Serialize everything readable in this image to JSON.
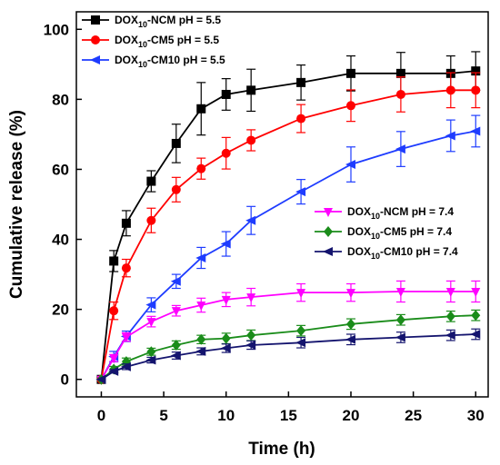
{
  "chart_data": {
    "type": "line",
    "xlabel": "Time (h)",
    "ylabel": "Cumulative release (%)",
    "xlim": [
      -2,
      31
    ],
    "ylim": [
      -5,
      105
    ],
    "xticks": [
      0,
      5,
      10,
      15,
      20,
      25,
      30
    ],
    "yticks": [
      0,
      20,
      40,
      60,
      80,
      100
    ],
    "x": [
      0,
      1,
      2,
      4,
      6,
      8,
      10,
      12,
      16,
      20,
      24,
      28,
      30
    ],
    "grid": false,
    "legend_placement": [
      "top-left",
      "right"
    ],
    "series": [
      {
        "name": "DOX10-NCM pH = 5.5",
        "legend": {
          "pre": "DOX",
          "sub": "10",
          "post": "-NCM pH = 5.5"
        },
        "color": "#000000",
        "marker": "square",
        "values": [
          0,
          33.8,
          44.6,
          56.6,
          67.4,
          77.3,
          81.4,
          82.6,
          84.8,
          87.4,
          87.4,
          87.4,
          88.1
        ],
        "errors": [
          0,
          3.0,
          3.6,
          3.0,
          5.5,
          7.5,
          4.5,
          6.0,
          5.0,
          5.0,
          6.0,
          5.0,
          5.5
        ]
      },
      {
        "name": "DOX10-CM5 pH = 5.5",
        "legend": {
          "pre": "DOX",
          "sub": "10",
          "post": "-CM5 pH = 5.5"
        },
        "color": "#ff0000",
        "marker": "circle",
        "values": [
          0,
          19.6,
          31.8,
          45.4,
          54.2,
          60.2,
          64.6,
          68.3,
          74.5,
          78.2,
          81.4,
          82.6,
          82.6
        ],
        "errors": [
          0,
          2.5,
          2.5,
          3.5,
          3.5,
          3.0,
          4.5,
          3.0,
          4.0,
          4.5,
          5.0,
          5.0,
          5.0
        ]
      },
      {
        "name": "DOX10-CM10 pH = 5.5",
        "legend": {
          "pre": "DOX",
          "sub": "10",
          "post": "-CM10 pH = 5.5"
        },
        "color": "#1e3cff",
        "marker": "left-triangle",
        "values": [
          0,
          6.5,
          12.3,
          21.3,
          28.0,
          34.7,
          38.7,
          45.4,
          53.6,
          61.4,
          65.8,
          69.6,
          70.9
        ],
        "errors": [
          0,
          1.5,
          1.5,
          2.0,
          2.0,
          3.0,
          3.5,
          4.0,
          3.5,
          5.0,
          5.0,
          4.5,
          4.5
        ]
      },
      {
        "name": "DOX10-NCM pH = 7.4",
        "legend": {
          "pre": "DOX",
          "sub": "10",
          "post": "-NCM pH = 7.4"
        },
        "color": "#ff00ff",
        "marker": "down-triangle",
        "values": [
          0,
          6.1,
          12.1,
          16.5,
          19.6,
          21.2,
          22.8,
          23.5,
          24.8,
          24.8,
          25.1,
          25.1,
          25.1
        ],
        "errors": [
          0,
          1.0,
          1.2,
          1.5,
          1.5,
          2.0,
          2.0,
          2.5,
          2.5,
          2.5,
          3.0,
          3.0,
          3.0
        ]
      },
      {
        "name": "DOX10-CM5 pH = 7.4",
        "legend": {
          "pre": "DOX",
          "sub": "10",
          "post": "-CM5 pH = 7.4"
        },
        "color": "#1a8c1a",
        "marker": "diamond",
        "values": [
          0,
          2.9,
          5.1,
          7.9,
          9.8,
          11.4,
          11.7,
          12.6,
          13.9,
          15.8,
          17.0,
          18.0,
          18.3
        ],
        "errors": [
          0,
          0.8,
          1.0,
          1.0,
          1.2,
          1.2,
          1.5,
          1.5,
          1.5,
          1.5,
          1.5,
          1.5,
          1.5
        ]
      },
      {
        "name": "DOX10-CM10 pH = 7.4",
        "legend": {
          "pre": "DOX",
          "sub": "10",
          "post": "-CM10 pH = 7.4"
        },
        "color": "#14146e",
        "marker": "left-triangle",
        "values": [
          0,
          2.3,
          3.6,
          5.5,
          6.8,
          8.0,
          8.9,
          9.8,
          10.5,
          11.4,
          12.0,
          12.6,
          12.9
        ],
        "errors": [
          0,
          0.5,
          0.8,
          0.8,
          1.0,
          1.0,
          1.2,
          1.2,
          1.5,
          1.5,
          1.5,
          1.5,
          1.5
        ]
      }
    ]
  }
}
